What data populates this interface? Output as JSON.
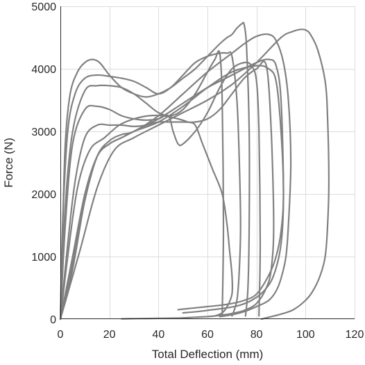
{
  "chart_data": {
    "type": "line",
    "title": "",
    "xlabel": "Total Deflection (mm)",
    "ylabel": "Force (N)",
    "xlim": [
      0,
      120
    ],
    "ylim": [
      0,
      5000
    ],
    "x_ticks": [
      0,
      20,
      40,
      60,
      80,
      100,
      120
    ],
    "y_ticks": [
      0,
      1000,
      2000,
      3000,
      4000,
      5000
    ],
    "grid": true,
    "line_color": "#808080",
    "series": [
      {
        "x": [
          0,
          1,
          2,
          4,
          7,
          10,
          13,
          16,
          20,
          25,
          30,
          35,
          40,
          45,
          50,
          55,
          60,
          65,
          68,
          70,
          72,
          74,
          75,
          76,
          77,
          77,
          76.5,
          75.5
        ],
        "y": [
          0,
          1500,
          2800,
          3600,
          3950,
          4100,
          4150,
          4100,
          3900,
          3700,
          3600,
          3550,
          3600,
          3700,
          3850,
          4000,
          4200,
          4400,
          4500,
          4550,
          4650,
          4720,
          4700,
          4300,
          3000,
          1500,
          500,
          50
        ]
      },
      {
        "x": [
          0,
          1,
          3,
          6,
          10,
          15,
          20,
          25,
          30,
          35,
          40,
          45,
          50,
          55,
          60,
          65,
          68,
          70,
          72,
          73,
          73.5,
          73,
          72,
          70
        ],
        "y": [
          0,
          1600,
          3000,
          3600,
          3850,
          3900,
          3880,
          3850,
          3800,
          3700,
          3600,
          3700,
          3900,
          4100,
          4200,
          4250,
          4250,
          4200,
          3500,
          2500,
          1500,
          800,
          300,
          50
        ]
      },
      {
        "x": [
          0,
          2,
          5,
          10,
          15,
          20,
          25,
          30,
          35,
          40,
          45,
          50,
          55,
          60,
          63,
          65,
          66,
          66.5,
          66
        ],
        "y": [
          0,
          1800,
          3000,
          3650,
          3730,
          3730,
          3700,
          3600,
          3450,
          3300,
          3250,
          3350,
          3600,
          3950,
          4150,
          4250,
          3500,
          1500,
          50
        ]
      },
      {
        "x": [
          0,
          2,
          5,
          10,
          15,
          20,
          25,
          30,
          35,
          40,
          44,
          46,
          48,
          50,
          55,
          60,
          65,
          70,
          75,
          78,
          80,
          81,
          81.5,
          81
        ],
        "y": [
          0,
          1500,
          2800,
          3350,
          3400,
          3350,
          3250,
          3200,
          3180,
          3200,
          3250,
          3000,
          2800,
          2800,
          3000,
          3300,
          3700,
          4000,
          4100,
          4050,
          3800,
          3000,
          1200,
          50
        ]
      },
      {
        "x": [
          0,
          3,
          6,
          10,
          15,
          20,
          25,
          30,
          35,
          40,
          45,
          50,
          55,
          60,
          65,
          70,
          75,
          80,
          84,
          86,
          87,
          86,
          84,
          80,
          75,
          70,
          65,
          60,
          55,
          50,
          45,
          40,
          35,
          30,
          25
        ],
        "y": [
          0,
          1200,
          2200,
          2900,
          3100,
          3100,
          3100,
          3080,
          3100,
          3150,
          3150,
          3150,
          3150,
          3200,
          3350,
          3600,
          3850,
          4000,
          4050,
          3000,
          1500,
          800,
          500,
          250,
          140,
          90,
          60,
          40,
          30,
          20,
          15,
          12,
          10,
          8,
          5
        ]
      },
      {
        "x": [
          0,
          3,
          7,
          12,
          18,
          24,
          30,
          36,
          42,
          48,
          52,
          55,
          58,
          62,
          66,
          68,
          69,
          70,
          70,
          68,
          66,
          63
        ],
        "y": [
          0,
          1000,
          2100,
          2700,
          2900,
          3100,
          3200,
          3250,
          3250,
          3200,
          3150,
          3100,
          2800,
          2400,
          2000,
          1500,
          1100,
          700,
          400,
          200,
          100,
          50
        ]
      },
      {
        "x": [
          0,
          5,
          10,
          15,
          20,
          25,
          30,
          40,
          50,
          60,
          70,
          80,
          85,
          88,
          90,
          91,
          90,
          88,
          85,
          80,
          75,
          70,
          65,
          60,
          55,
          50,
          48
        ],
        "y": [
          0,
          1000,
          2000,
          2600,
          2800,
          2900,
          3000,
          3150,
          3400,
          3700,
          3950,
          4050,
          4000,
          3800,
          3000,
          2000,
          1400,
          1000,
          700,
          400,
          300,
          250,
          220,
          200,
          180,
          160,
          150
        ]
      },
      {
        "x": [
          0,
          5,
          10,
          15,
          20,
          25,
          30,
          40,
          50,
          60,
          70,
          80,
          85,
          88,
          90,
          91,
          90,
          87,
          83,
          78,
          73,
          68,
          62,
          56,
          50
        ],
        "y": [
          0,
          900,
          1900,
          2600,
          2800,
          2900,
          3000,
          3200,
          3450,
          3700,
          3900,
          4100,
          4150,
          4050,
          3500,
          2000,
          1200,
          700,
          450,
          300,
          220,
          180,
          150,
          120,
          100
        ]
      },
      {
        "x": [
          0,
          5,
          10,
          15,
          20,
          25,
          30,
          40,
          50,
          60,
          70,
          75,
          80,
          85,
          88,
          91,
          93,
          94,
          93,
          92,
          90,
          88,
          85,
          80,
          75,
          70,
          65
        ],
        "y": [
          0,
          800,
          1900,
          2600,
          2850,
          2950,
          3000,
          3250,
          3600,
          3950,
          4250,
          4400,
          4520,
          4550,
          4450,
          4100,
          3500,
          2500,
          1500,
          1000,
          650,
          450,
          300,
          200,
          120,
          70,
          40
        ]
      },
      {
        "x": [
          0,
          8,
          15,
          22,
          30,
          40,
          50,
          60,
          70,
          80,
          90,
          95,
          98,
          100,
          102,
          105,
          108,
          109,
          109.5,
          109,
          108,
          106,
          103,
          100,
          95,
          90,
          85,
          82
        ],
        "y": [
          0,
          1100,
          2100,
          2700,
          2900,
          3100,
          3300,
          3500,
          3750,
          4100,
          4500,
          4600,
          4630,
          4620,
          4550,
          4300,
          3800,
          3200,
          2200,
          1500,
          1000,
          700,
          450,
          300,
          150,
          80,
          30,
          0
        ]
      }
    ]
  }
}
